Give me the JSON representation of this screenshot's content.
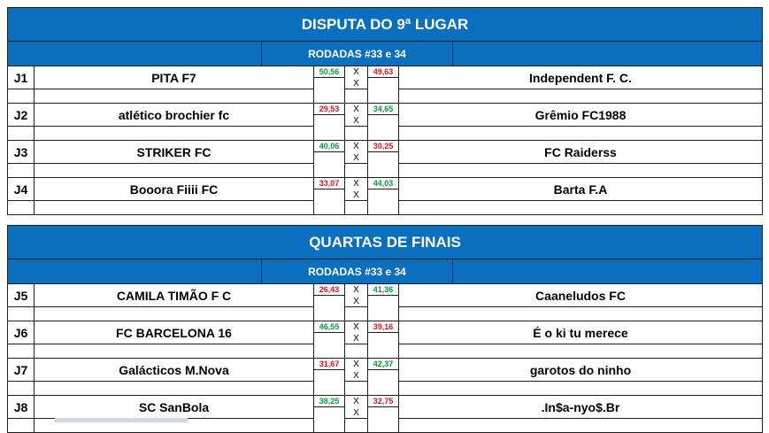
{
  "sections": [
    {
      "title": "DISPUTA DO 9ª LUGAR",
      "subtitle": "RODADAS #33 e 34",
      "matches": [
        {
          "id": "J1",
          "home": "PITA F7",
          "home_score": "50,56",
          "home_color": "win",
          "x1": "X",
          "x2": "X",
          "away_score": "49,63",
          "away_color": "lose",
          "away": "Independent F. C."
        },
        {
          "id": "J2",
          "home": "atlético brochier fc",
          "home_score": "29,53",
          "home_color": "lose",
          "x1": "X",
          "x2": "X",
          "away_score": "34,65",
          "away_color": "win",
          "away": "Grêmio FC1988"
        },
        {
          "id": "J3",
          "home": "STRIKER FC",
          "home_score": "40,06",
          "home_color": "win",
          "x1": "X",
          "x2": "X",
          "away_score": "30,25",
          "away_color": "lose",
          "away": "FC Raiderss"
        },
        {
          "id": "J4",
          "home": "Booora Fiiii FC",
          "home_score": "33,07",
          "home_color": "lose",
          "x1": "X",
          "x2": "X",
          "away_score": "44,03",
          "away_color": "win",
          "away": "Barta F.A"
        }
      ]
    },
    {
      "title": "QUARTAS DE FINAIS",
      "subtitle": "RODADAS #33 e 34",
      "matches": [
        {
          "id": "J5",
          "home": "CAMILA TIMÃO F C",
          "home_score": "26,43",
          "home_color": "lose",
          "x1": "X",
          "x2": "X",
          "away_score": "41,36",
          "away_color": "win",
          "away": "Caaneludos FC"
        },
        {
          "id": "J6",
          "home": "FC BARCELONA 16",
          "home_score": "46,55",
          "home_color": "win",
          "x1": "X",
          "x2": "X",
          "away_score": "39,16",
          "away_color": "lose",
          "away": "É o ki tu merece"
        },
        {
          "id": "J7",
          "home": "Galácticos M.Nova",
          "home_score": "31,67",
          "home_color": "lose",
          "x1": "X",
          "x2": "X",
          "away_score": "42,37",
          "away_color": "win",
          "away": "garotos do ninho"
        },
        {
          "id": "J8",
          "home": "SC SanBola",
          "home_score": "38,25",
          "home_color": "win",
          "x1": "X",
          "x2": "X",
          "away_score": "32,75",
          "away_color": "lose",
          "away": ".In$a-nyo$.Br"
        }
      ]
    }
  ],
  "colors": {
    "header_blue": "#0b6fc0",
    "win_green": "#0a9a3a",
    "lose_red": "#e0151b"
  }
}
